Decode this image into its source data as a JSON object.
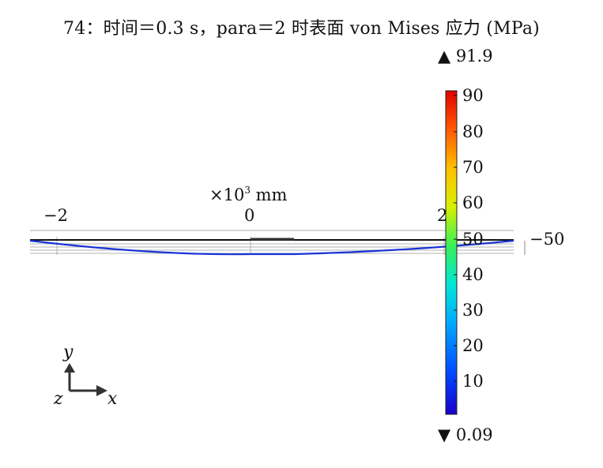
{
  "title": "74：时间＝0.3 s，para＝2 时表面 von Mises 应力 (MPa)",
  "colorbar": {
    "max_label": "▲ 91.9",
    "min_label": "▼ 0.09",
    "max": 91.9,
    "min": 0.09,
    "ticks": [
      "90",
      "80",
      "70",
      "60",
      "50",
      "40",
      "30",
      "20",
      "10"
    ],
    "tick_values": [
      90,
      80,
      70,
      60,
      50,
      40,
      30,
      20,
      10
    ]
  },
  "axis": {
    "x_title": "×10",
    "x_title_exp": "3",
    "x_title_unit": " mm",
    "x_ticks": [
      "−2",
      "0",
      "2"
    ],
    "y_tick": "−50"
  },
  "triad": {
    "y": "y",
    "x": "x",
    "z": "z"
  },
  "colors": {
    "beam_stress": "#1a33d6",
    "frame": "#222222"
  }
}
